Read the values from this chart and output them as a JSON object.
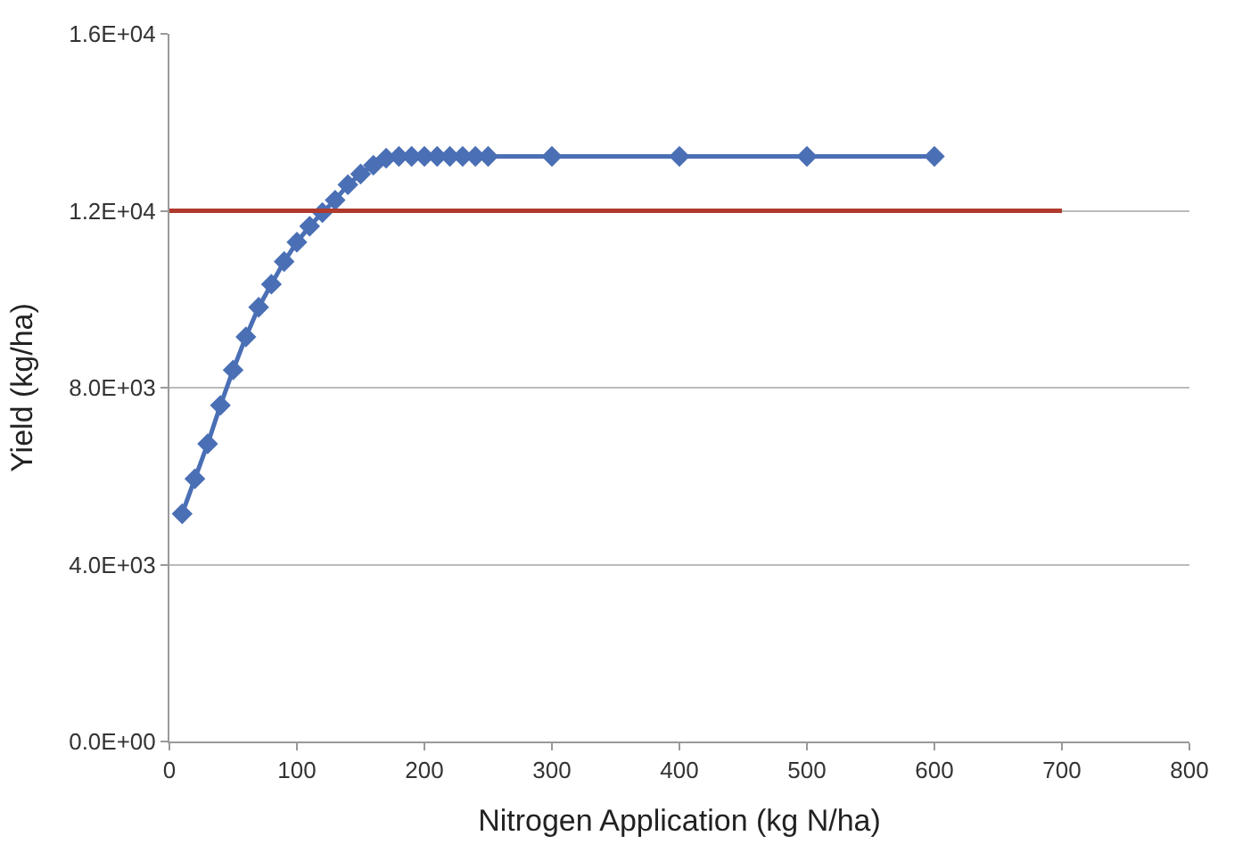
{
  "chart_data": {
    "type": "line",
    "xlabel": "Nitrogen Application (kg N/ha)",
    "ylabel": "Yield (kg/ha)",
    "series": [
      {
        "color": "#4a6fb5",
        "marker": "diamond",
        "x": [
          10,
          20,
          30,
          40,
          50,
          60,
          70,
          80,
          90,
          100,
          110,
          120,
          130,
          140,
          150,
          160,
          170,
          180,
          190,
          200,
          210,
          220,
          230,
          240,
          250,
          300,
          400,
          500,
          600
        ],
        "values": [
          5150,
          5940,
          6730,
          7600,
          8400,
          9150,
          9820,
          10340,
          10850,
          11290,
          11650,
          11960,
          12240,
          12590,
          12830,
          13030,
          13190,
          13230,
          13230,
          13230,
          13230,
          13230,
          13230,
          13230,
          13230,
          13230,
          13230,
          13230,
          13230
        ]
      },
      {
        "color": "#b03a2e",
        "marker": "none",
        "x": [
          0,
          700
        ],
        "values": [
          12000,
          12000
        ]
      }
    ],
    "xlim": [
      0,
      800
    ],
    "xticks": [
      0,
      100,
      200,
      300,
      400,
      500,
      600,
      700,
      800
    ],
    "ylim": [
      0,
      16000
    ],
    "yticks": [
      {
        "value": 0,
        "label": "0.0E+00"
      },
      {
        "value": 4000,
        "label": "4.0E+03"
      },
      {
        "value": 8000,
        "label": "8.0E+03"
      },
      {
        "value": 12000,
        "label": "1.2E+04"
      },
      {
        "value": 16000,
        "label": "1.6E+04"
      }
    ],
    "grid": "y"
  }
}
